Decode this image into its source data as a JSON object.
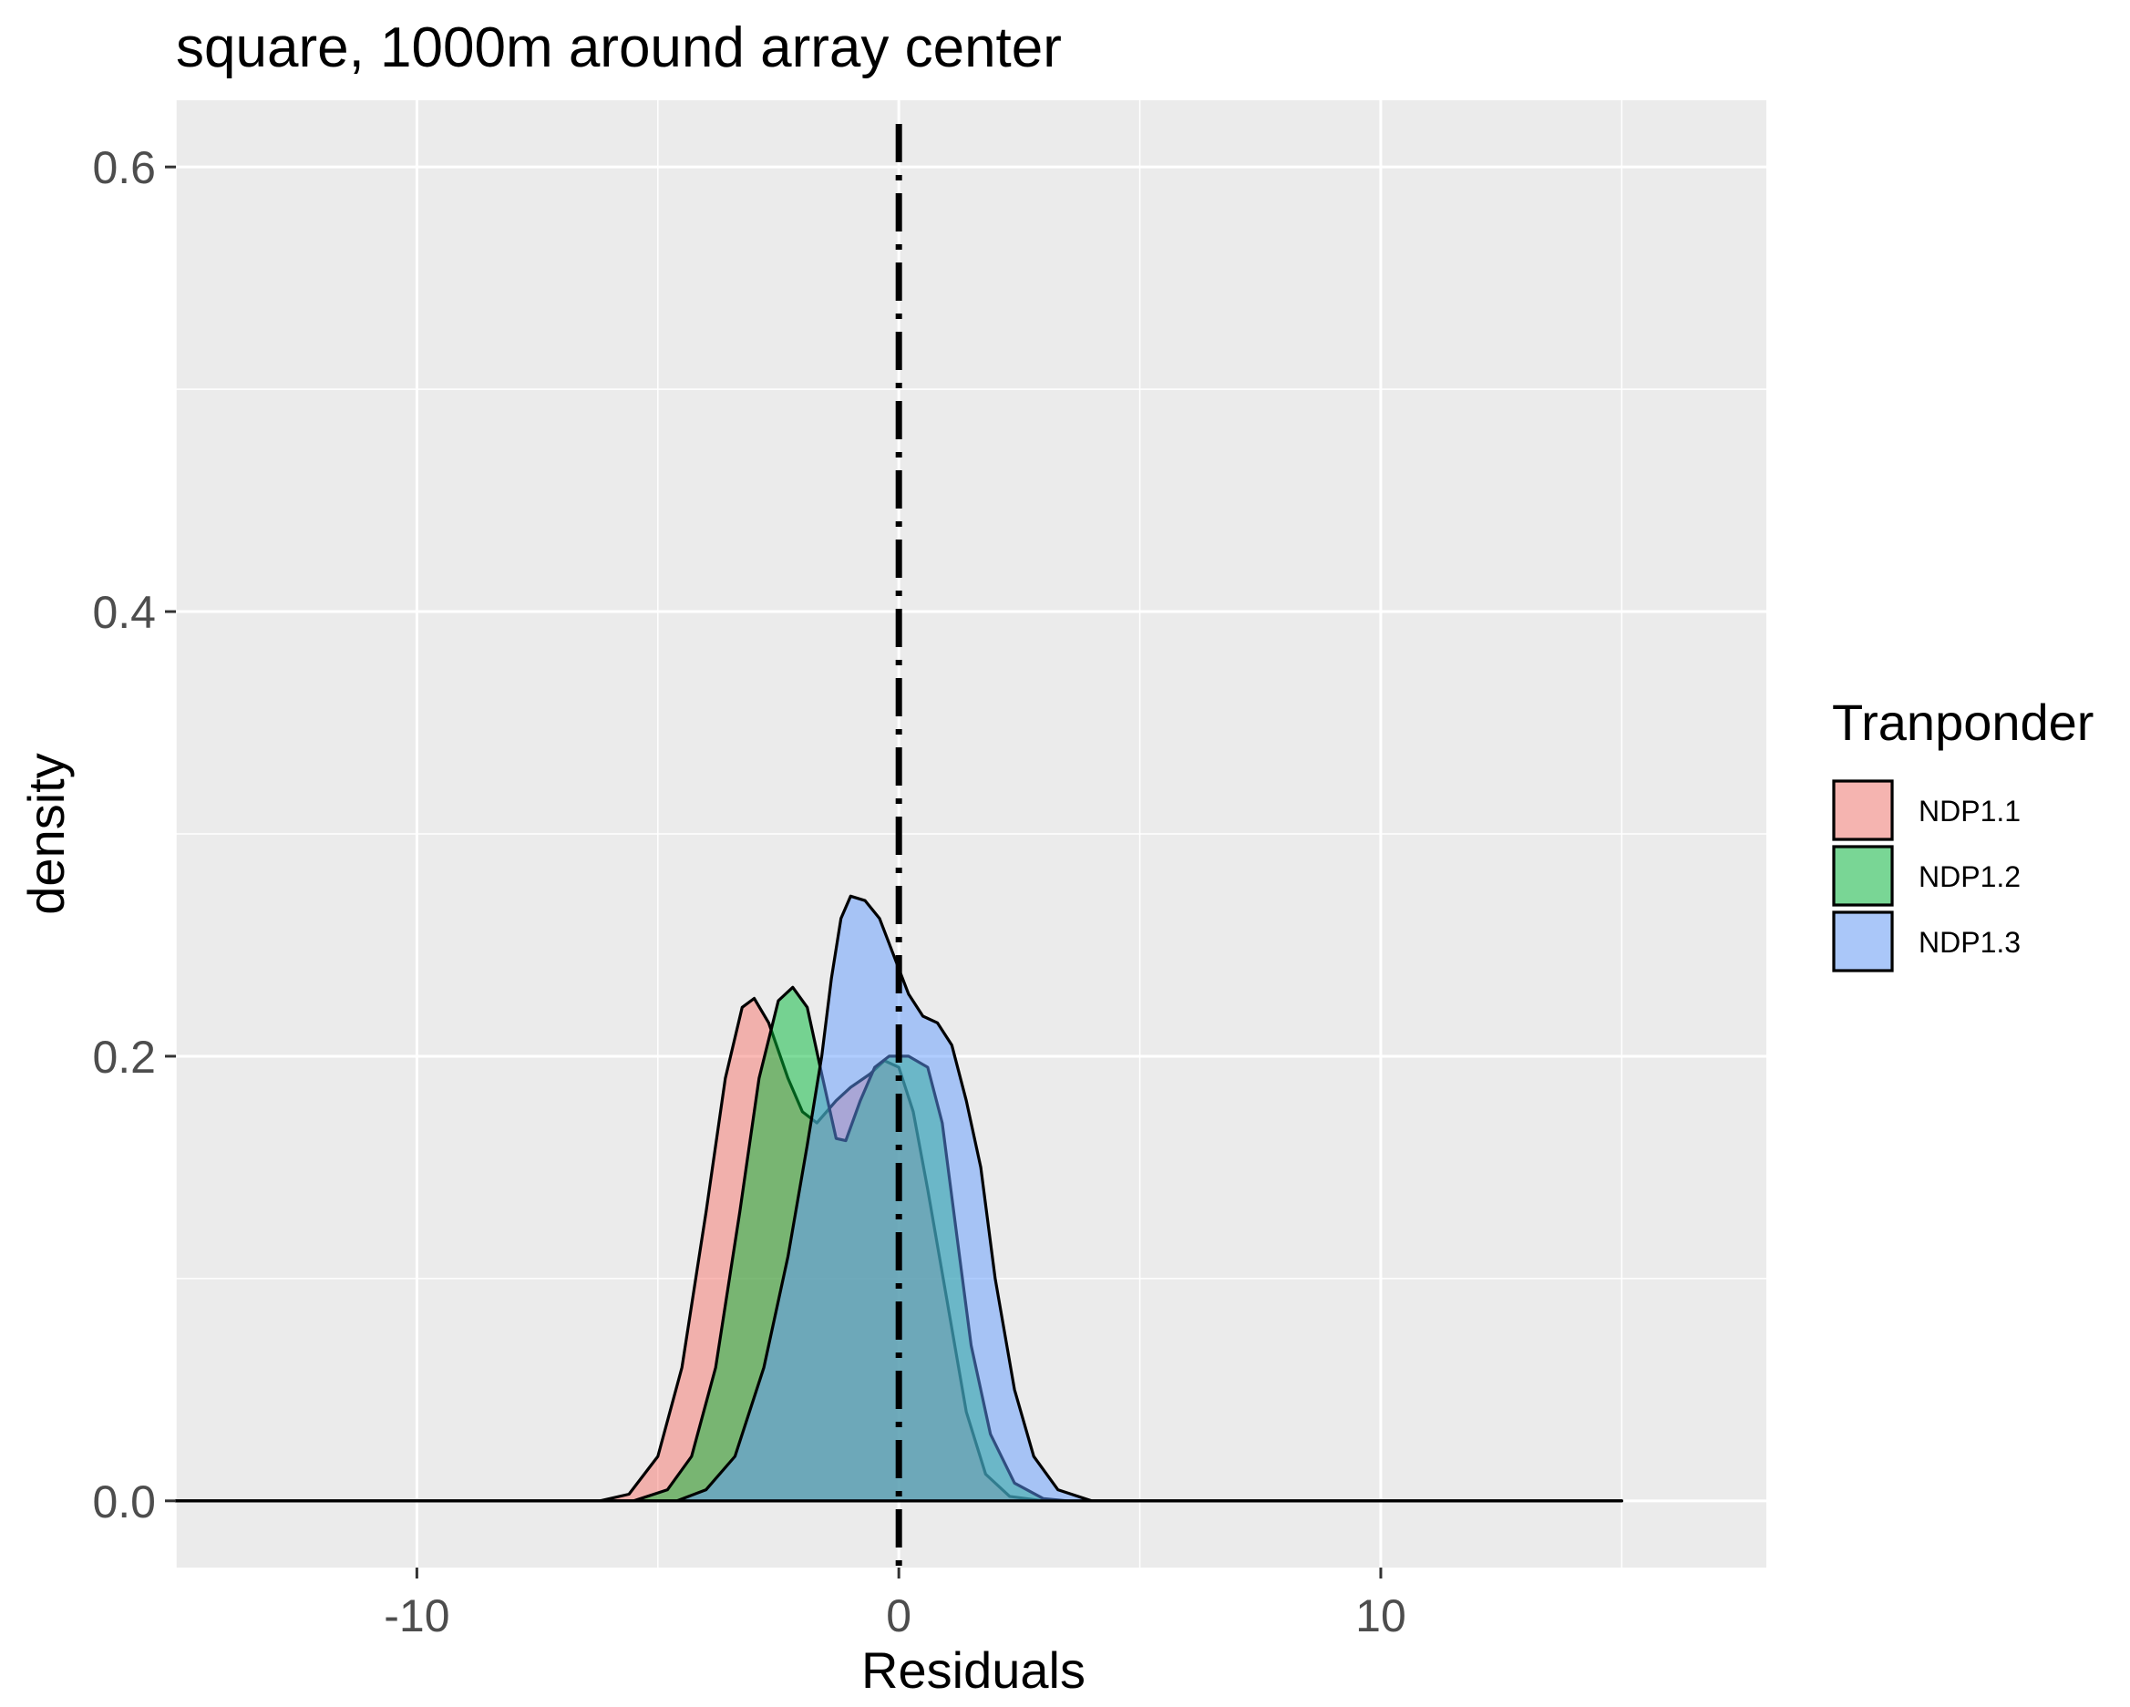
{
  "chart_data": {
    "type": "area",
    "title": "square, 1000m around array center",
    "xlabel": "Residuals",
    "ylabel": "density",
    "xlim": [
      -15.0,
      18.0
    ],
    "ylim": [
      -0.03,
      0.63
    ],
    "x_ticks": [
      -10,
      0,
      10
    ],
    "x_tick_labels": [
      "-10",
      "0",
      "10"
    ],
    "y_ticks": [
      0.0,
      0.2,
      0.4,
      0.6
    ],
    "y_tick_labels": [
      "0.0",
      "0.2",
      "0.4",
      "0.6"
    ],
    "grid": true,
    "legend_title": "Tranponder",
    "legend_position": "right",
    "reference_line": {
      "x": 0,
      "style": "dotdash"
    },
    "series": [
      {
        "name": "NDP1.1",
        "color": "#F8766D",
        "points": [
          [
            -15,
            0
          ],
          [
            -6.2,
            0
          ],
          [
            -5.6,
            0.003
          ],
          [
            -5.0,
            0.02
          ],
          [
            -4.5,
            0.06
          ],
          [
            -4.0,
            0.13
          ],
          [
            -3.6,
            0.19
          ],
          [
            -3.25,
            0.222
          ],
          [
            -3.0,
            0.226
          ],
          [
            -2.7,
            0.215
          ],
          [
            -2.3,
            0.19
          ],
          [
            -2.0,
            0.175
          ],
          [
            -1.7,
            0.17
          ],
          [
            -1.3,
            0.18
          ],
          [
            -1.0,
            0.186
          ],
          [
            -0.6,
            0.192
          ],
          [
            -0.3,
            0.198
          ],
          [
            0.0,
            0.195
          ],
          [
            0.3,
            0.175
          ],
          [
            0.6,
            0.14
          ],
          [
            1.0,
            0.09
          ],
          [
            1.4,
            0.04
          ],
          [
            1.8,
            0.012
          ],
          [
            2.3,
            0.002
          ],
          [
            3.0,
            0
          ],
          [
            15,
            0
          ]
        ]
      },
      {
        "name": "NDP1.2",
        "color": "#00BA38",
        "points": [
          [
            -15,
            0
          ],
          [
            -5.5,
            0
          ],
          [
            -4.8,
            0.005
          ],
          [
            -4.3,
            0.02
          ],
          [
            -3.8,
            0.06
          ],
          [
            -3.3,
            0.13
          ],
          [
            -2.9,
            0.19
          ],
          [
            -2.5,
            0.225
          ],
          [
            -2.2,
            0.231
          ],
          [
            -1.9,
            0.222
          ],
          [
            -1.6,
            0.192
          ],
          [
            -1.3,
            0.163
          ],
          [
            -1.1,
            0.162
          ],
          [
            -0.8,
            0.18
          ],
          [
            -0.5,
            0.195
          ],
          [
            -0.2,
            0.2
          ],
          [
            0.2,
            0.2
          ],
          [
            0.6,
            0.195
          ],
          [
            0.9,
            0.17
          ],
          [
            1.2,
            0.12
          ],
          [
            1.5,
            0.07
          ],
          [
            1.9,
            0.03
          ],
          [
            2.4,
            0.008
          ],
          [
            3.0,
            0.001
          ],
          [
            3.5,
            0
          ],
          [
            15,
            0
          ]
        ]
      },
      {
        "name": "NDP1.3",
        "color": "#619CFF",
        "points": [
          [
            -15,
            0
          ],
          [
            -4.6,
            0
          ],
          [
            -4.0,
            0.005
          ],
          [
            -3.4,
            0.02
          ],
          [
            -2.8,
            0.06
          ],
          [
            -2.3,
            0.11
          ],
          [
            -1.9,
            0.16
          ],
          [
            -1.6,
            0.2
          ],
          [
            -1.4,
            0.235
          ],
          [
            -1.2,
            0.262
          ],
          [
            -1.0,
            0.272
          ],
          [
            -0.7,
            0.27
          ],
          [
            -0.4,
            0.262
          ],
          [
            -0.1,
            0.245
          ],
          [
            0.2,
            0.228
          ],
          [
            0.5,
            0.218
          ],
          [
            0.8,
            0.215
          ],
          [
            1.1,
            0.205
          ],
          [
            1.4,
            0.18
          ],
          [
            1.7,
            0.15
          ],
          [
            2.0,
            0.1
          ],
          [
            2.4,
            0.05
          ],
          [
            2.8,
            0.02
          ],
          [
            3.3,
            0.005
          ],
          [
            4.0,
            0
          ],
          [
            15,
            0
          ]
        ]
      }
    ]
  }
}
